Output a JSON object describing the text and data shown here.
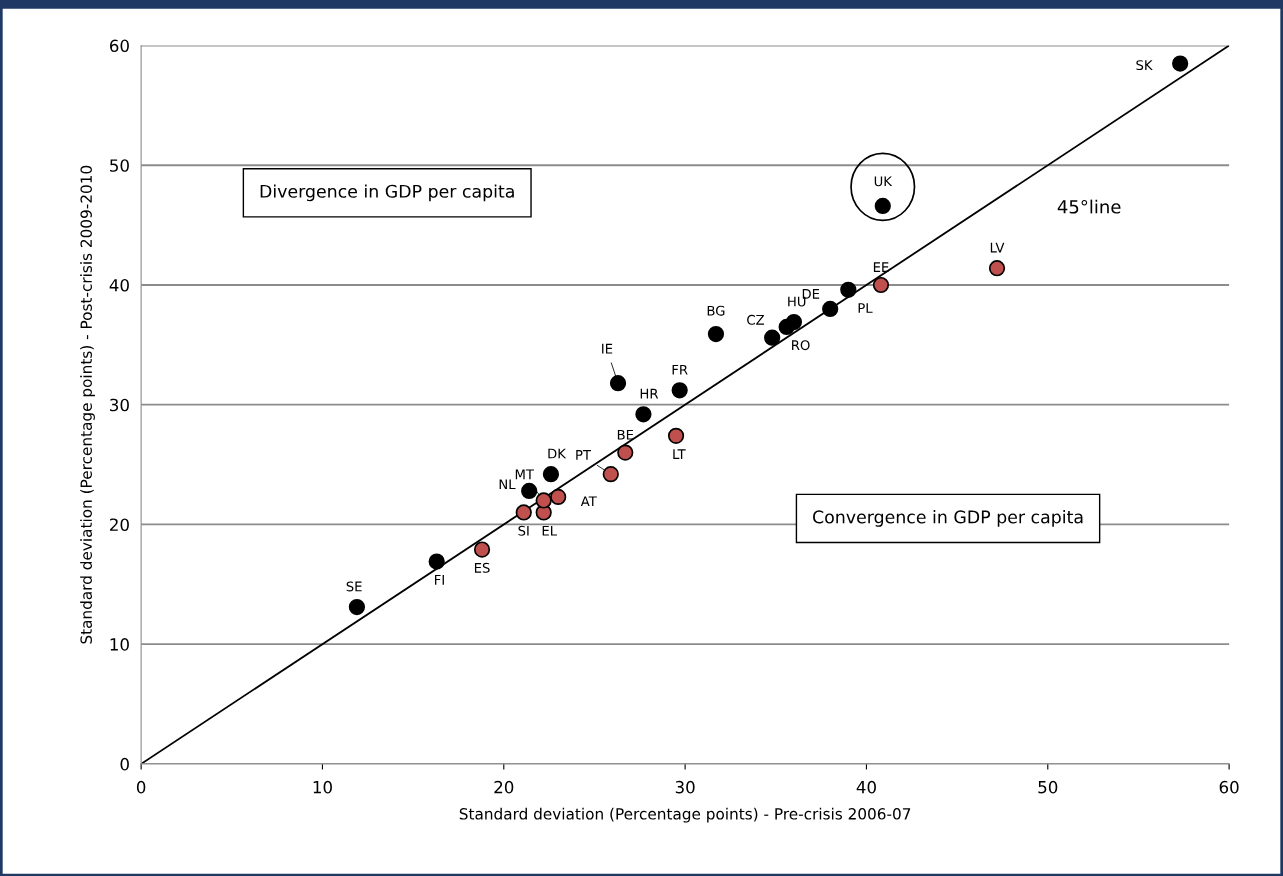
{
  "chart_data": {
    "type": "scatter",
    "xlabel": "Standard deviation (Percentage points) - Pre-crisis 2006-07",
    "ylabel": "Standard deviation (Percentage points) - Post-crisis 2009-2010",
    "xlim": [
      0,
      60
    ],
    "ylim": [
      0,
      60
    ],
    "xticks": [
      0,
      10,
      20,
      30,
      40,
      50,
      60
    ],
    "yticks": [
      0,
      10,
      20,
      30,
      40,
      50,
      60
    ],
    "grid": "y",
    "legend": false,
    "series": [
      {
        "color": "#000000",
        "marker": "circle",
        "x": [
          11.9,
          16.3,
          21.4,
          22.6,
          26.3,
          27.7,
          29.7,
          31.7,
          34.8,
          35.6,
          36.0,
          38.0,
          39.0,
          40.9,
          57.3
        ],
        "values": [
          13.1,
          16.9,
          22.8,
          24.2,
          31.8,
          29.2,
          31.2,
          35.9,
          35.6,
          36.5,
          36.9,
          38.0,
          39.6,
          46.6,
          58.5
        ]
      },
      {
        "color": "#c0504d",
        "marker": "circle",
        "x": [
          18.8,
          21.1,
          22.2,
          22.2,
          23.0,
          25.9,
          26.7,
          29.5,
          40.8,
          47.2
        ],
        "values": [
          17.9,
          21.0,
          21.0,
          22.0,
          22.3,
          24.2,
          26.0,
          27.4,
          40.0,
          41.4
        ]
      },
      {
        "type": "line",
        "name": "45°line",
        "color": "#000000",
        "marker": "none",
        "x": [
          0,
          60
        ],
        "values": [
          0,
          60
        ]
      }
    ],
    "annotations": [
      {
        "text": "SE",
        "x": 11.9,
        "y": 13.1
      },
      {
        "text": "FI",
        "x": 16.3,
        "y": 16.9
      },
      {
        "text": "NL",
        "x": 21.4,
        "y": 22.8
      },
      {
        "text": "DK",
        "x": 22.6,
        "y": 24.2
      },
      {
        "text": "IE",
        "x": 26.3,
        "y": 31.8
      },
      {
        "text": "HR",
        "x": 27.7,
        "y": 29.2
      },
      {
        "text": "FR",
        "x": 29.7,
        "y": 31.2
      },
      {
        "text": "BG",
        "x": 31.7,
        "y": 35.9
      },
      {
        "text": "CZ",
        "x": 34.8,
        "y": 35.6
      },
      {
        "text": "RO",
        "x": 35.6,
        "y": 36.5
      },
      {
        "text": "HU",
        "x": 36.0,
        "y": 36.9
      },
      {
        "text": "DE",
        "x": 38.0,
        "y": 38.0
      },
      {
        "text": "PL",
        "x": 39.0,
        "y": 39.6
      },
      {
        "text": "UK",
        "x": 40.9,
        "y": 46.6
      },
      {
        "text": "SK",
        "x": 57.3,
        "y": 58.5
      },
      {
        "text": "ES",
        "x": 18.8,
        "y": 17.9
      },
      {
        "text": "SI",
        "x": 21.1,
        "y": 21.0
      },
      {
        "text": "EL",
        "x": 22.2,
        "y": 21.0
      },
      {
        "text": "MT",
        "x": 22.2,
        "y": 22.0
      },
      {
        "text": "AT",
        "x": 23.0,
        "y": 22.3
      },
      {
        "text": "PT",
        "x": 25.9,
        "y": 24.2
      },
      {
        "text": "BE",
        "x": 26.7,
        "y": 26.0
      },
      {
        "text": "LT",
        "x": 29.5,
        "y": 27.4
      },
      {
        "text": "EE",
        "x": 40.8,
        "y": 40.0
      },
      {
        "text": "LV",
        "x": 47.2,
        "y": 41.4
      },
      "Divergence in GDP per capita",
      "Convergence in GDP per capita"
    ]
  }
}
